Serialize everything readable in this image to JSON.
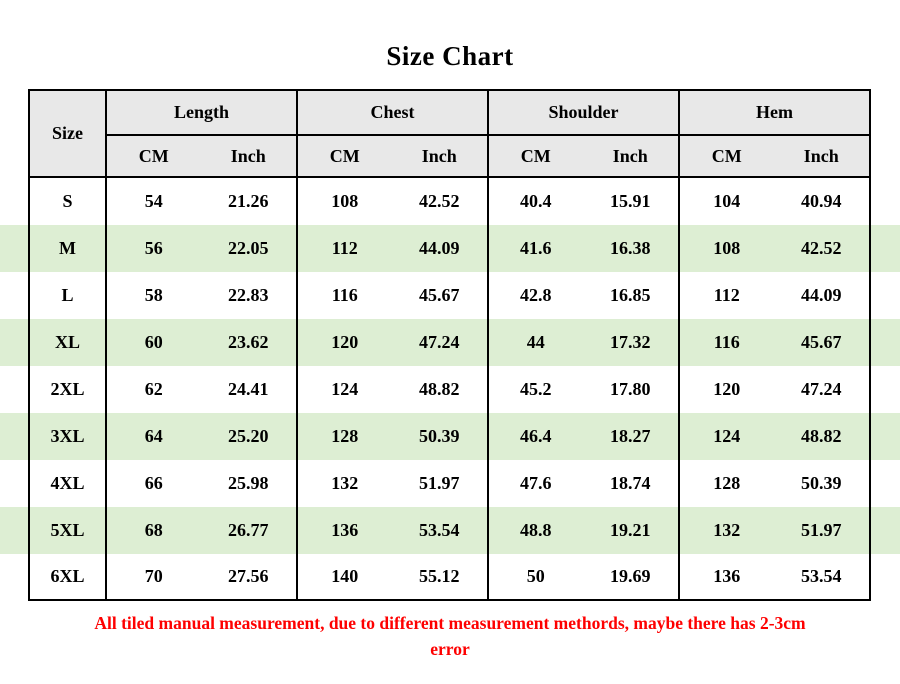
{
  "title": "Size Chart",
  "chart_data": {
    "type": "table",
    "title": "Size Chart",
    "size_col_header": "Size",
    "groups": [
      {
        "label": "Length",
        "cm": "CM",
        "inch": "Inch"
      },
      {
        "label": "Chest",
        "cm": "CM",
        "inch": "Inch"
      },
      {
        "label": "Shoulder",
        "cm": "CM",
        "inch": "Inch"
      },
      {
        "label": "Hem",
        "cm": "CM",
        "inch": "Inch"
      }
    ],
    "rows": [
      {
        "size": "S",
        "cells": [
          "54",
          "21.26",
          "108",
          "42.52",
          "40.4",
          "15.91",
          "104",
          "40.94"
        ]
      },
      {
        "size": "M",
        "cells": [
          "56",
          "22.05",
          "112",
          "44.09",
          "41.6",
          "16.38",
          "108",
          "42.52"
        ]
      },
      {
        "size": "L",
        "cells": [
          "58",
          "22.83",
          "116",
          "45.67",
          "42.8",
          "16.85",
          "112",
          "44.09"
        ]
      },
      {
        "size": "XL",
        "cells": [
          "60",
          "23.62",
          "120",
          "47.24",
          "44",
          "17.32",
          "116",
          "45.67"
        ]
      },
      {
        "size": "2XL",
        "cells": [
          "62",
          "24.41",
          "124",
          "48.82",
          "45.2",
          "17.80",
          "120",
          "47.24"
        ]
      },
      {
        "size": "3XL",
        "cells": [
          "64",
          "25.20",
          "128",
          "50.39",
          "46.4",
          "18.27",
          "124",
          "48.82"
        ]
      },
      {
        "size": "4XL",
        "cells": [
          "66",
          "25.98",
          "132",
          "51.97",
          "47.6",
          "18.74",
          "128",
          "50.39"
        ]
      },
      {
        "size": "5XL",
        "cells": [
          "68",
          "26.77",
          "136",
          "53.54",
          "48.8",
          "19.21",
          "132",
          "51.97"
        ]
      },
      {
        "size": "6XL",
        "cells": [
          "70",
          "27.56",
          "140",
          "55.12",
          "50",
          "19.69",
          "136",
          "53.54"
        ]
      }
    ],
    "layout": {
      "striped_rows": [
        "M",
        "XL",
        "3XL",
        "5XL"
      ],
      "grid": "outer border, column-group dividers, no horizontal lines between data rows"
    }
  },
  "footnote_lines": [
    "All tiled manual measurement, due to different measurement methords, maybe there has 2-3cm",
    "error"
  ],
  "colors": {
    "stripe_green": "#ddeed3",
    "header_gray": "#e8e8e8",
    "border_black": "#000000",
    "note_red": "#fe0000"
  }
}
